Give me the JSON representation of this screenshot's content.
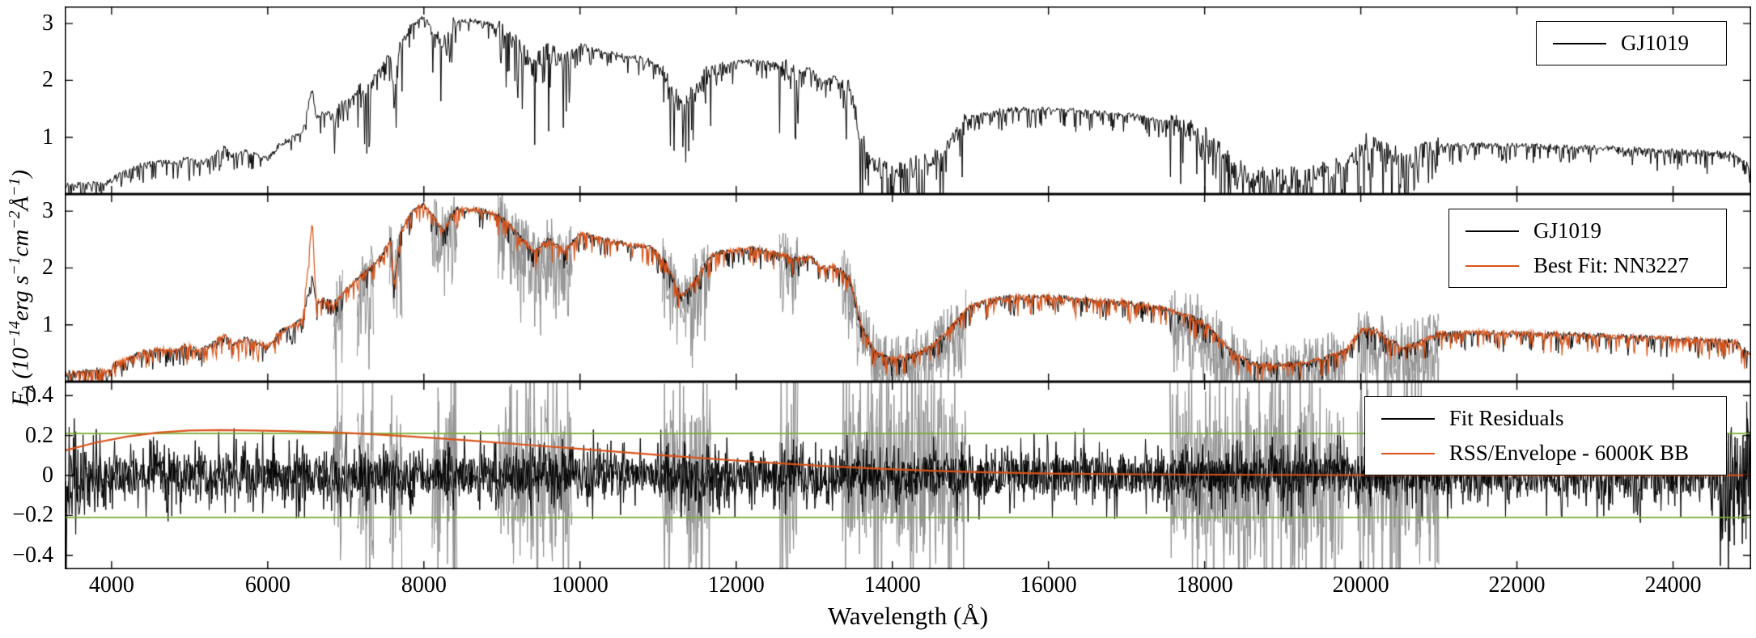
{
  "figure": {
    "xlabel": "Wavelength (Å)",
    "ylabel": "F_{λ} (10^{−14}erg s^{−1}cm^{−2}Å^{−1})"
  },
  "colors": {
    "data": "#000000",
    "model": "#d95319",
    "noisy": "#8f8f8f",
    "threshold": "#77ac30",
    "frame": "#000000",
    "background": "#ffffff"
  },
  "axes": {
    "xlim": [
      3400,
      25000
    ],
    "xticks": [
      4000,
      6000,
      8000,
      10000,
      12000,
      14000,
      16000,
      18000,
      20000,
      22000,
      24000
    ],
    "xticklabels": [
      "4000",
      "6000",
      "8000",
      "10000",
      "12000",
      "14000",
      "16000",
      "18000",
      "20000",
      "22000",
      "24000"
    ]
  },
  "noisy_regions": [
    [
      6840,
      6960
    ],
    [
      7140,
      7360
    ],
    [
      7560,
      7720
    ],
    [
      8100,
      8430
    ],
    [
      8950,
      9900
    ],
    [
      11050,
      11680
    ],
    [
      12550,
      12800
    ],
    [
      13350,
      14950
    ],
    [
      17550,
      19800
    ],
    [
      19950,
      21000
    ]
  ],
  "chart_data": [
    {
      "type": "line",
      "name": "observed-spectrum-panel",
      "ylim": [
        0,
        3.3
      ],
      "yticks": [
        1,
        2,
        3
      ],
      "yticklabels": [
        "1",
        "2",
        "3"
      ],
      "legend": [
        {
          "label": "GJ1019",
          "color": "#000000"
        }
      ],
      "series": [
        {
          "name": "GJ1019",
          "kind": "spectrum",
          "color": "#000000",
          "region_boost": true,
          "x": [
            3400,
            3600,
            3800,
            3950,
            4050,
            4200,
            4400,
            4600,
            4800,
            4950,
            5100,
            5250,
            5450,
            5550,
            5700,
            5850,
            6000,
            6150,
            6300,
            6450,
            6570,
            6620,
            6700,
            6850,
            7000,
            7150,
            7300,
            7450,
            7570,
            7620,
            7700,
            7850,
            8000,
            8150,
            8250,
            8400,
            8600,
            8800,
            9000,
            9200,
            9400,
            9600,
            9800,
            10000,
            10300,
            10600,
            10900,
            11100,
            11300,
            11500,
            11700,
            11900,
            12200,
            12500,
            12750,
            12950,
            13100,
            13250,
            13450,
            13600,
            13800,
            14000,
            14200,
            14400,
            14600,
            14800,
            15000,
            15200,
            15500,
            16000,
            16500,
            17000,
            17400,
            17700,
            18000,
            18300,
            18600,
            18900,
            19200,
            19500,
            19800,
            20000,
            20150,
            20350,
            20550,
            20750,
            21000,
            21500,
            22000,
            22500,
            23000,
            23500,
            24000,
            24500,
            24800,
            25000
          ],
          "y": [
            0.15,
            0.18,
            0.21,
            0.2,
            0.32,
            0.4,
            0.52,
            0.57,
            0.55,
            0.65,
            0.55,
            0.62,
            0.83,
            0.68,
            0.76,
            0.7,
            0.62,
            0.88,
            0.97,
            1.12,
            1.9,
            1.35,
            1.45,
            1.38,
            1.62,
            1.8,
            1.98,
            2.2,
            2.5,
            1.7,
            2.65,
            3.0,
            3.12,
            2.85,
            2.65,
            3.05,
            3.05,
            3.0,
            2.9,
            2.6,
            2.3,
            2.5,
            2.3,
            2.62,
            2.5,
            2.42,
            2.38,
            2.1,
            1.5,
            1.85,
            2.25,
            2.3,
            2.35,
            2.28,
            2.15,
            2.2,
            2.0,
            2.05,
            1.85,
            1.0,
            0.5,
            0.42,
            0.45,
            0.55,
            0.75,
            1.05,
            1.35,
            1.42,
            1.5,
            1.5,
            1.45,
            1.4,
            1.32,
            1.2,
            1.05,
            0.6,
            0.32,
            0.3,
            0.32,
            0.4,
            0.55,
            0.9,
            0.95,
            0.75,
            0.6,
            0.7,
            0.85,
            0.87,
            0.86,
            0.84,
            0.82,
            0.79,
            0.76,
            0.73,
            0.71,
            0.45
          ]
        }
      ]
    },
    {
      "type": "line",
      "name": "model-fit-panel",
      "ylim": [
        0,
        3.3
      ],
      "yticks": [
        1,
        2,
        3
      ],
      "yticklabels": [
        "1",
        "2",
        "3"
      ],
      "legend": [
        {
          "label": "GJ1019",
          "color": "#000000"
        },
        {
          "label": "Best Fit: NN3227",
          "color": "#d95319"
        }
      ],
      "series": [
        {
          "name": "telluric-noisy-data",
          "kind": "spectrum",
          "color": "#8f8f8f",
          "only_regions": true,
          "x": [
            3400,
            3600,
            3800,
            3950,
            4050,
            4200,
            4400,
            4600,
            4800,
            4950,
            5100,
            5250,
            5450,
            5550,
            5700,
            5850,
            6000,
            6150,
            6300,
            6450,
            6570,
            6620,
            6700,
            6850,
            7000,
            7150,
            7300,
            7450,
            7570,
            7620,
            7700,
            7850,
            8000,
            8150,
            8250,
            8400,
            8600,
            8800,
            9000,
            9200,
            9400,
            9600,
            9800,
            10000,
            10300,
            10600,
            10900,
            11100,
            11300,
            11500,
            11700,
            11900,
            12200,
            12500,
            12750,
            12950,
            13100,
            13250,
            13450,
            13600,
            13800,
            14000,
            14200,
            14400,
            14600,
            14800,
            15000,
            15200,
            15500,
            16000,
            16500,
            17000,
            17400,
            17700,
            18000,
            18300,
            18600,
            18900,
            19200,
            19500,
            19800,
            20000,
            20150,
            20350,
            20550,
            20750,
            21000,
            21500,
            22000,
            22500,
            23000,
            23500,
            24000,
            24500,
            24800,
            25000
          ],
          "y": [
            0.15,
            0.18,
            0.21,
            0.2,
            0.32,
            0.4,
            0.52,
            0.57,
            0.55,
            0.65,
            0.55,
            0.62,
            0.83,
            0.68,
            0.76,
            0.7,
            0.62,
            0.88,
            0.97,
            1.12,
            1.9,
            1.35,
            1.45,
            1.38,
            1.62,
            1.8,
            1.98,
            2.2,
            2.5,
            1.7,
            2.65,
            3.0,
            3.12,
            2.85,
            2.65,
            3.05,
            3.05,
            3.0,
            2.9,
            2.6,
            2.3,
            2.5,
            2.3,
            2.62,
            2.5,
            2.42,
            2.38,
            2.1,
            1.5,
            1.85,
            2.25,
            2.3,
            2.35,
            2.28,
            2.15,
            2.2,
            2.0,
            2.05,
            1.85,
            1.0,
            0.5,
            0.42,
            0.45,
            0.55,
            0.75,
            1.05,
            1.35,
            1.42,
            1.5,
            1.5,
            1.45,
            1.4,
            1.32,
            1.2,
            1.05,
            0.6,
            0.32,
            0.3,
            0.32,
            0.4,
            0.55,
            0.9,
            0.95,
            0.75,
            0.6,
            0.7,
            0.85,
            0.87,
            0.86,
            0.84,
            0.82,
            0.79,
            0.76,
            0.73,
            0.71,
            0.45
          ]
        },
        {
          "name": "GJ1019",
          "kind": "spectrum",
          "color": "#000000",
          "region_boost": false,
          "x": [
            3400,
            3600,
            3800,
            3950,
            4050,
            4200,
            4400,
            4600,
            4800,
            4950,
            5100,
            5250,
            5450,
            5550,
            5700,
            5850,
            6000,
            6150,
            6300,
            6450,
            6570,
            6620,
            6700,
            6850,
            7000,
            7150,
            7300,
            7450,
            7570,
            7620,
            7700,
            7850,
            8000,
            8150,
            8250,
            8400,
            8600,
            8800,
            9000,
            9200,
            9400,
            9600,
            9800,
            10000,
            10300,
            10600,
            10900,
            11100,
            11300,
            11500,
            11700,
            11900,
            12200,
            12500,
            12750,
            12950,
            13100,
            13250,
            13450,
            13600,
            13800,
            14000,
            14200,
            14400,
            14600,
            14800,
            15000,
            15200,
            15500,
            16000,
            16500,
            17000,
            17400,
            17700,
            18000,
            18300,
            18600,
            18900,
            19200,
            19500,
            19800,
            20000,
            20150,
            20350,
            20550,
            20750,
            21000,
            21500,
            22000,
            22500,
            23000,
            23500,
            24000,
            24500,
            24800,
            25000
          ],
          "y": [
            0.15,
            0.18,
            0.21,
            0.2,
            0.32,
            0.4,
            0.52,
            0.57,
            0.55,
            0.65,
            0.55,
            0.62,
            0.83,
            0.68,
            0.76,
            0.7,
            0.62,
            0.88,
            0.97,
            1.12,
            1.9,
            1.35,
            1.45,
            1.38,
            1.62,
            1.8,
            1.98,
            2.2,
            2.5,
            1.7,
            2.65,
            3.0,
            3.12,
            2.85,
            2.65,
            3.05,
            3.05,
            3.0,
            2.9,
            2.6,
            2.3,
            2.5,
            2.3,
            2.62,
            2.5,
            2.42,
            2.38,
            2.1,
            1.5,
            1.85,
            2.25,
            2.3,
            2.35,
            2.28,
            2.15,
            2.2,
            2.0,
            2.05,
            1.85,
            1.0,
            0.5,
            0.42,
            0.45,
            0.55,
            0.75,
            1.05,
            1.35,
            1.42,
            1.5,
            1.5,
            1.45,
            1.4,
            1.32,
            1.2,
            1.05,
            0.6,
            0.32,
            0.3,
            0.32,
            0.4,
            0.55,
            0.9,
            0.95,
            0.75,
            0.6,
            0.7,
            0.85,
            0.87,
            0.86,
            0.84,
            0.82,
            0.79,
            0.76,
            0.73,
            0.71,
            0.45
          ]
        },
        {
          "name": "Best Fit: NN3227",
          "kind": "spectrum",
          "color": "#d95319",
          "region_boost": false,
          "lw": 1.2,
          "noise": 0.035,
          "x": [
            3400,
            3600,
            3800,
            3950,
            4050,
            4200,
            4400,
            4600,
            4800,
            4950,
            5100,
            5250,
            5450,
            5550,
            5700,
            5850,
            6000,
            6150,
            6300,
            6450,
            6570,
            6620,
            6700,
            6850,
            7000,
            7150,
            7300,
            7450,
            7570,
            7620,
            7700,
            7850,
            8000,
            8150,
            8250,
            8400,
            8600,
            8800,
            9000,
            9200,
            9400,
            9600,
            9800,
            10000,
            10300,
            10600,
            10900,
            11100,
            11300,
            11500,
            11700,
            11900,
            12200,
            12500,
            12750,
            12950,
            13100,
            13250,
            13450,
            13600,
            13800,
            14000,
            14200,
            14400,
            14600,
            14800,
            15000,
            15200,
            15500,
            16000,
            16500,
            17000,
            17400,
            17700,
            18000,
            18300,
            18600,
            18900,
            19200,
            19500,
            19800,
            20000,
            20150,
            20350,
            20550,
            20750,
            21000,
            21500,
            22000,
            22500,
            23000,
            23500,
            24000,
            24500,
            24800,
            25000
          ],
          "y": [
            0.15,
            0.18,
            0.21,
            0.2,
            0.32,
            0.4,
            0.52,
            0.57,
            0.55,
            0.65,
            0.55,
            0.62,
            0.83,
            0.68,
            0.76,
            0.7,
            0.62,
            0.88,
            0.97,
            1.12,
            2.85,
            1.4,
            1.45,
            1.38,
            1.62,
            1.8,
            1.98,
            2.2,
            2.5,
            1.7,
            2.65,
            3.0,
            3.12,
            2.85,
            2.65,
            3.05,
            3.05,
            3.0,
            2.9,
            2.6,
            2.3,
            2.5,
            2.3,
            2.62,
            2.5,
            2.42,
            2.38,
            2.1,
            1.5,
            1.85,
            2.25,
            2.3,
            2.35,
            2.28,
            2.15,
            2.2,
            2.0,
            2.05,
            1.85,
            1.0,
            0.5,
            0.42,
            0.45,
            0.55,
            0.75,
            1.05,
            1.35,
            1.42,
            1.5,
            1.5,
            1.45,
            1.4,
            1.32,
            1.2,
            1.05,
            0.6,
            0.32,
            0.3,
            0.32,
            0.4,
            0.55,
            0.9,
            0.95,
            0.75,
            0.6,
            0.7,
            0.85,
            0.87,
            0.86,
            0.84,
            0.82,
            0.79,
            0.76,
            0.73,
            0.71,
            0.45
          ]
        }
      ]
    },
    {
      "type": "line",
      "name": "residuals-panel",
      "ylim": [
        -0.47,
        0.47
      ],
      "yticks": [
        -0.4,
        -0.2,
        0,
        0.2,
        0.4
      ],
      "yticklabels": [
        "−0.4",
        "−0.2",
        "0",
        "0.2",
        "0.4"
      ],
      "hlines": [
        {
          "y": 0.21,
          "color": "#77ac30"
        },
        {
          "y": -0.21,
          "color": "#77ac30"
        }
      ],
      "legend": [
        {
          "label": "Fit Residuals",
          "color": "#000000"
        },
        {
          "label": "RSS/Envelope - 6000K BB",
          "color": "#d95319"
        }
      ],
      "series": [
        {
          "name": "noisy-residuals",
          "kind": "residual",
          "color": "#8f8f8f",
          "only_regions": true,
          "amp": 0.32,
          "x": [
            3400,
            25000
          ],
          "y": [
            0,
            0
          ]
        },
        {
          "name": "Fit Residuals",
          "kind": "residual",
          "color": "#000000",
          "amp": 0.085,
          "edge_regions": [
            [
              3400,
              3600
            ],
            [
              24600,
              25000
            ]
          ],
          "edge_amp": 0.22,
          "x": [
            3400,
            25000
          ],
          "y": [
            0,
            0
          ]
        },
        {
          "name": "RSS/Envelope - 6000K BB",
          "kind": "line",
          "color": "#d95319",
          "x": [
            3400,
            3800,
            4200,
            4600,
            5000,
            5400,
            5800,
            6200,
            6600,
            7000,
            7400,
            7800,
            8200,
            8600,
            9000,
            9500,
            10000,
            10500,
            11000,
            11500,
            12000,
            12500,
            13000,
            13500,
            14000,
            14500,
            15000,
            16000,
            17000,
            18000,
            19000,
            20000,
            21000,
            22000,
            23000,
            24000,
            25000
          ],
          "y": [
            0.125,
            0.165,
            0.195,
            0.215,
            0.225,
            0.227,
            0.225,
            0.222,
            0.218,
            0.213,
            0.205,
            0.196,
            0.186,
            0.175,
            0.163,
            0.148,
            0.133,
            0.118,
            0.103,
            0.089,
            0.075,
            0.062,
            0.05,
            0.04,
            0.031,
            0.024,
            0.018,
            0.01,
            0.006,
            0.004,
            0.003,
            0.002,
            0.002,
            0.001,
            0.001,
            0.001,
            0.001
          ]
        }
      ]
    }
  ]
}
